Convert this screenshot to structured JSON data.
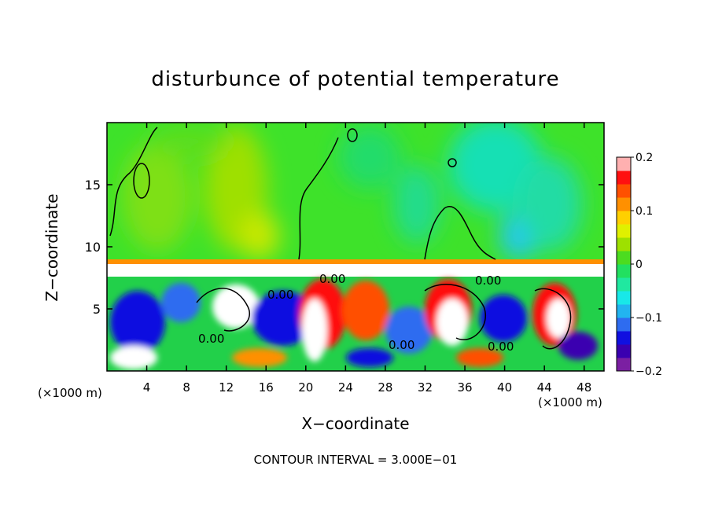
{
  "chart_data": {
    "type": "heatmap",
    "title": "disturbunce of potential temperature",
    "xlabel": "X−coordinate",
    "ylabel": "Z−coordinate",
    "x_unit_label": "(×1000 m)",
    "y_unit_label": "(×1000 m)",
    "xlim": [
      0,
      50
    ],
    "ylim": [
      0,
      20
    ],
    "x_ticks": [
      4,
      8,
      12,
      16,
      20,
      24,
      28,
      32,
      36,
      40,
      44,
      48
    ],
    "y_ticks": [
      5,
      10,
      15
    ],
    "contour_labels": [
      "0.00",
      "0.00",
      "0.00",
      "0.00",
      "0.00",
      "0.00"
    ],
    "colorbar": {
      "range": [
        -0.2,
        0.2
      ],
      "tick_labels": [
        "0.2",
        "0.1",
        "0",
        "−0.1",
        "−0.2"
      ],
      "tick_values": [
        0.2,
        0.1,
        0,
        -0.1,
        -0.2
      ],
      "colors": [
        "#7b1fa2",
        "#3a00b0",
        "#1010e0",
        "#2e6cf0",
        "#22b4f0",
        "#18e8e8",
        "#20e8a0",
        "#22e060",
        "#4cdc20",
        "#9ee000",
        "#e0f000",
        "#ffd000",
        "#ff9000",
        "#ff5000",
        "#ff1010",
        "#ffb0b0"
      ]
    },
    "notes": "Upper layer (z ≈ 9–20 km) near-zero green/cyan anomalies; lower layer (z < 8 km) strong turbulent eddies spanning the full color range."
  },
  "footer": {
    "contour_interval": "CONTOUR INTERVAL = 3.000E−01"
  }
}
